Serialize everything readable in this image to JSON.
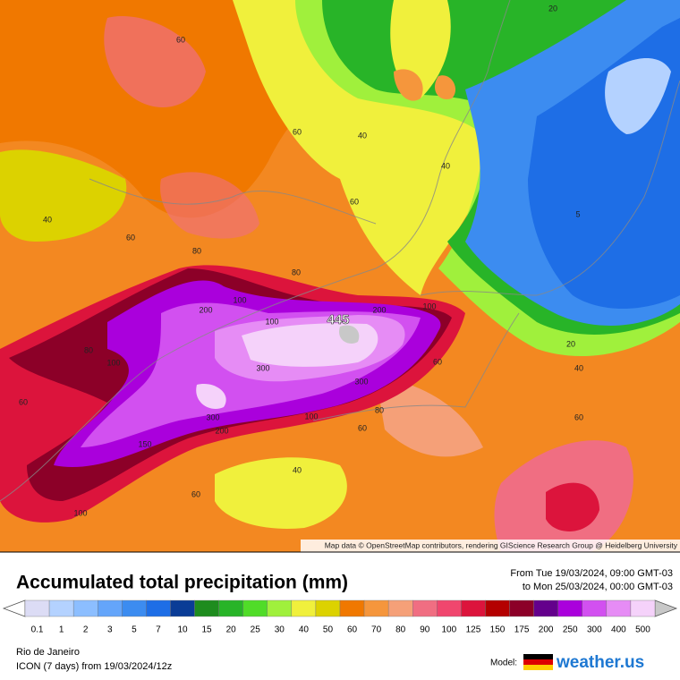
{
  "map": {
    "attribution": "Map data © OpenStreetMap contributors, rendering GIScience Research Group @ Heidelberg University",
    "contour_labels": [
      "60",
      "20",
      "40",
      "60",
      "40",
      "40",
      "60",
      "60",
      "5",
      "80",
      "80",
      "100",
      "200",
      "100",
      "445",
      "200",
      "100",
      "80",
      "100",
      "300",
      "300",
      "60",
      "20",
      "40",
      "60",
      "300",
      "80",
      "100",
      "60",
      "200",
      "60",
      "150",
      "40",
      "60",
      "100"
    ]
  },
  "header": {
    "title": "Accumulated total precipitation (mm)",
    "from": "From Tue 19/03/2024, 09:00 GMT-03",
    "to": "to Mon 25/03/2024, 00:00 GMT-03"
  },
  "legend": {
    "labels": [
      "0.1",
      "1",
      "2",
      "3",
      "5",
      "7",
      "10",
      "15",
      "20",
      "25",
      "30",
      "40",
      "50",
      "60",
      "70",
      "80",
      "90",
      "100",
      "125",
      "150",
      "175",
      "200",
      "250",
      "300",
      "400",
      "500"
    ],
    "colors": [
      "#dcdcf5",
      "#b4d2ff",
      "#8cbeff",
      "#64a5fa",
      "#3c8cf0",
      "#1e6ee6",
      "#0a3c96",
      "#1e8c1e",
      "#28b428",
      "#50dc28",
      "#a0f03c",
      "#f0f03c",
      "#dcd200",
      "#f07800",
      "#f5963c",
      "#f5a078",
      "#f06e82",
      "#f0466e",
      "#dc143c",
      "#b40000",
      "#8c0028",
      "#64008c",
      "#aa00dc",
      "#d250f0",
      "#e68cf5",
      "#f5d2fa"
    ]
  },
  "footer": {
    "location": "Rio de Janeiro",
    "model_run": "ICON (7 days) from 19/03/2024/12z",
    "model_label": "Model:",
    "brand": "weather.us"
  }
}
